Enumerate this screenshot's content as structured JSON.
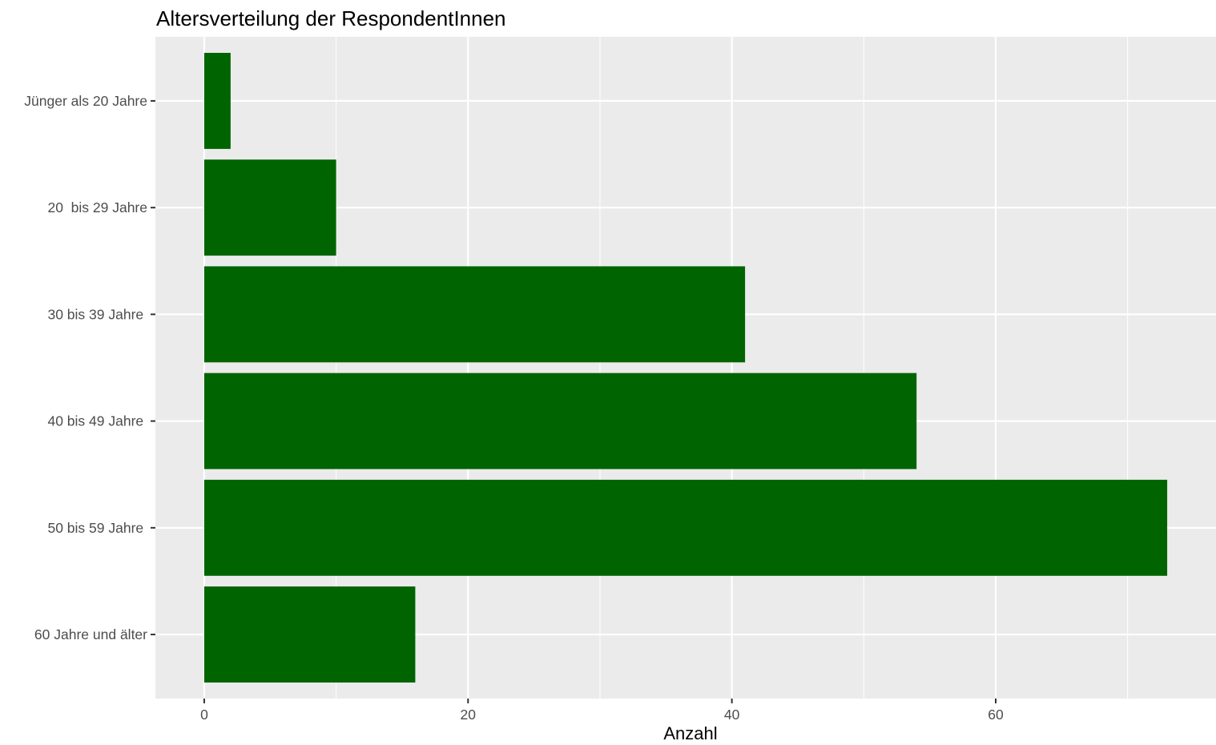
{
  "chart_data": {
    "type": "bar",
    "orientation": "horizontal",
    "title": "Altersverteilung der RespondentInnen",
    "xlabel": "Anzahl",
    "ylabel": "",
    "categories": [
      "Jünger als 20 Jahre",
      "20  bis 29 Jahre",
      "30 bis 39 Jahre ",
      "40 bis 49 Jahre ",
      "50 bis 59 Jahre ",
      "60 Jahre und älter"
    ],
    "values": [
      2,
      10,
      41,
      54,
      73,
      16
    ],
    "xlim": [
      -3.7,
      76.7
    ],
    "x_ticks": [
      0,
      20,
      40,
      60
    ],
    "x_tick_labels": [
      "0",
      "20",
      "40",
      "60"
    ],
    "grid": true,
    "legend": "none",
    "colors": {
      "bar": "#006400",
      "panel_background": "#ebebeb",
      "grid_line": "#ffffff",
      "axis_tick": "#333333"
    }
  }
}
